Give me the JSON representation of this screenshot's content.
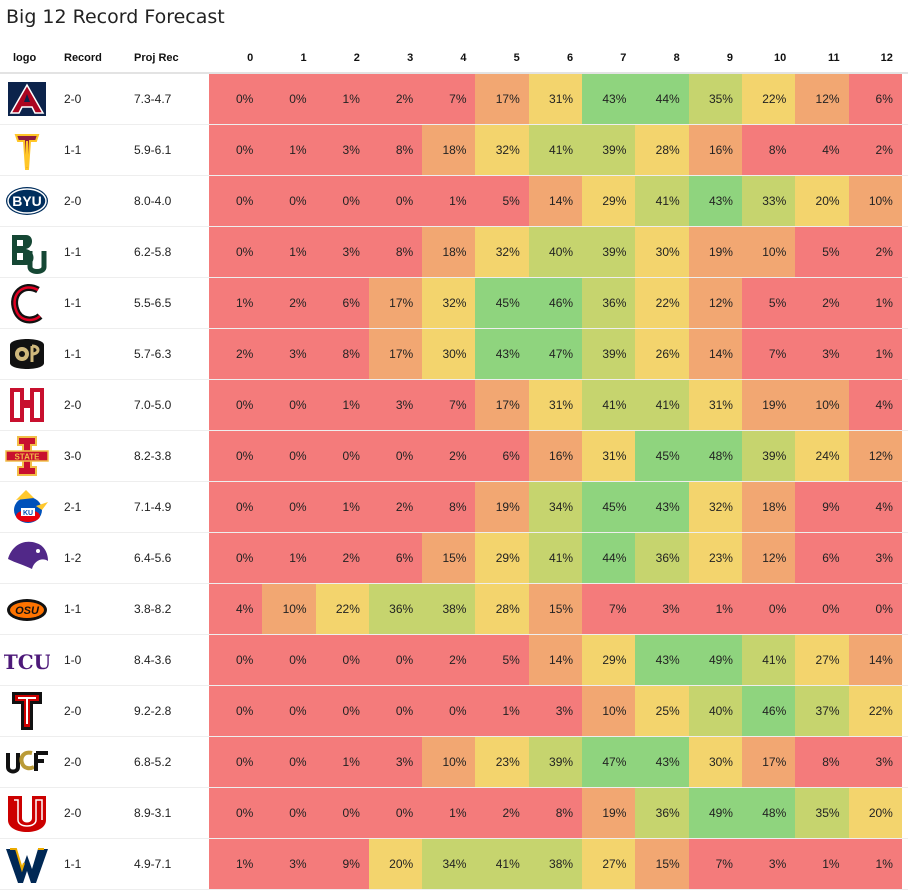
{
  "title": "Big 12 Record Forecast",
  "columns": {
    "logo": "logo",
    "record": "Record",
    "proj": "Proj Rec",
    "wins": [
      "0",
      "1",
      "2",
      "3",
      "4",
      "5",
      "6",
      "7",
      "8",
      "9",
      "10",
      "11",
      "12"
    ]
  },
  "colors": {
    "low": "#f47b7b",
    "orange": "#f2a772",
    "yellow": "#f3d46d",
    "lightgreen": "#c6d46e",
    "green": "#8fd47e"
  },
  "chart_data": {
    "type": "table",
    "title": "Big 12 Record Forecast",
    "x": [
      "0",
      "1",
      "2",
      "3",
      "4",
      "5",
      "6",
      "7",
      "8",
      "9",
      "10",
      "11",
      "12"
    ],
    "rows": [
      {
        "logo": "arizona-logo",
        "record": "2-0",
        "proj": "7.3-4.7",
        "values": [
          "0%",
          "0%",
          "1%",
          "2%",
          "7%",
          "17%",
          "31%",
          "43%",
          "44%",
          "35%",
          "22%",
          "12%",
          "6%"
        ]
      },
      {
        "logo": "arizona-state-logo",
        "record": "1-1",
        "proj": "5.9-6.1",
        "values": [
          "0%",
          "1%",
          "3%",
          "8%",
          "18%",
          "32%",
          "41%",
          "39%",
          "28%",
          "16%",
          "8%",
          "4%",
          "2%"
        ]
      },
      {
        "logo": "byu-logo",
        "record": "2-0",
        "proj": "8.0-4.0",
        "values": [
          "0%",
          "0%",
          "0%",
          "0%",
          "1%",
          "5%",
          "14%",
          "29%",
          "41%",
          "43%",
          "33%",
          "20%",
          "10%"
        ]
      },
      {
        "logo": "baylor-logo",
        "record": "1-1",
        "proj": "6.2-5.8",
        "values": [
          "0%",
          "1%",
          "3%",
          "8%",
          "18%",
          "32%",
          "40%",
          "39%",
          "30%",
          "19%",
          "10%",
          "5%",
          "2%"
        ]
      },
      {
        "logo": "cincinnati-logo",
        "record": "1-1",
        "proj": "5.5-6.5",
        "values": [
          "1%",
          "2%",
          "6%",
          "17%",
          "32%",
          "45%",
          "46%",
          "36%",
          "22%",
          "12%",
          "5%",
          "2%",
          "1%"
        ]
      },
      {
        "logo": "colorado-logo",
        "record": "1-1",
        "proj": "5.7-6.3",
        "values": [
          "2%",
          "3%",
          "8%",
          "17%",
          "30%",
          "43%",
          "47%",
          "39%",
          "26%",
          "14%",
          "7%",
          "3%",
          "1%"
        ]
      },
      {
        "logo": "houston-logo",
        "record": "2-0",
        "proj": "7.0-5.0",
        "values": [
          "0%",
          "0%",
          "1%",
          "3%",
          "7%",
          "17%",
          "31%",
          "41%",
          "41%",
          "31%",
          "19%",
          "10%",
          "4%"
        ]
      },
      {
        "logo": "iowa-state-logo",
        "record": "3-0",
        "proj": "8.2-3.8",
        "values": [
          "0%",
          "0%",
          "0%",
          "0%",
          "2%",
          "6%",
          "16%",
          "31%",
          "45%",
          "48%",
          "39%",
          "24%",
          "12%"
        ]
      },
      {
        "logo": "kansas-logo",
        "record": "2-1",
        "proj": "7.1-4.9",
        "values": [
          "0%",
          "0%",
          "1%",
          "2%",
          "8%",
          "19%",
          "34%",
          "45%",
          "43%",
          "32%",
          "18%",
          "9%",
          "4%"
        ]
      },
      {
        "logo": "kansas-state-logo",
        "record": "1-2",
        "proj": "6.4-5.6",
        "values": [
          "0%",
          "1%",
          "2%",
          "6%",
          "15%",
          "29%",
          "41%",
          "44%",
          "36%",
          "23%",
          "12%",
          "6%",
          "3%"
        ]
      },
      {
        "logo": "oklahoma-state-logo",
        "record": "1-1",
        "proj": "3.8-8.2",
        "values": [
          "4%",
          "10%",
          "22%",
          "36%",
          "38%",
          "28%",
          "15%",
          "7%",
          "3%",
          "1%",
          "0%",
          "0%",
          "0%"
        ]
      },
      {
        "logo": "tcu-logo",
        "record": "1-0",
        "proj": "8.4-3.6",
        "values": [
          "0%",
          "0%",
          "0%",
          "0%",
          "2%",
          "5%",
          "14%",
          "29%",
          "43%",
          "49%",
          "41%",
          "27%",
          "14%"
        ]
      },
      {
        "logo": "texas-tech-logo",
        "record": "2-0",
        "proj": "9.2-2.8",
        "values": [
          "0%",
          "0%",
          "0%",
          "0%",
          "0%",
          "1%",
          "3%",
          "10%",
          "25%",
          "40%",
          "46%",
          "37%",
          "22%"
        ]
      },
      {
        "logo": "ucf-logo",
        "record": "2-0",
        "proj": "6.8-5.2",
        "values": [
          "0%",
          "0%",
          "1%",
          "3%",
          "10%",
          "23%",
          "39%",
          "47%",
          "43%",
          "30%",
          "17%",
          "8%",
          "3%"
        ]
      },
      {
        "logo": "utah-logo",
        "record": "2-0",
        "proj": "8.9-3.1",
        "values": [
          "0%",
          "0%",
          "0%",
          "0%",
          "1%",
          "2%",
          "8%",
          "19%",
          "36%",
          "49%",
          "48%",
          "35%",
          "20%"
        ]
      },
      {
        "logo": "west-virginia-logo",
        "record": "1-1",
        "proj": "4.9-7.1",
        "values": [
          "1%",
          "3%",
          "9%",
          "20%",
          "34%",
          "41%",
          "38%",
          "27%",
          "15%",
          "7%",
          "3%",
          "1%",
          "1%"
        ]
      }
    ]
  }
}
